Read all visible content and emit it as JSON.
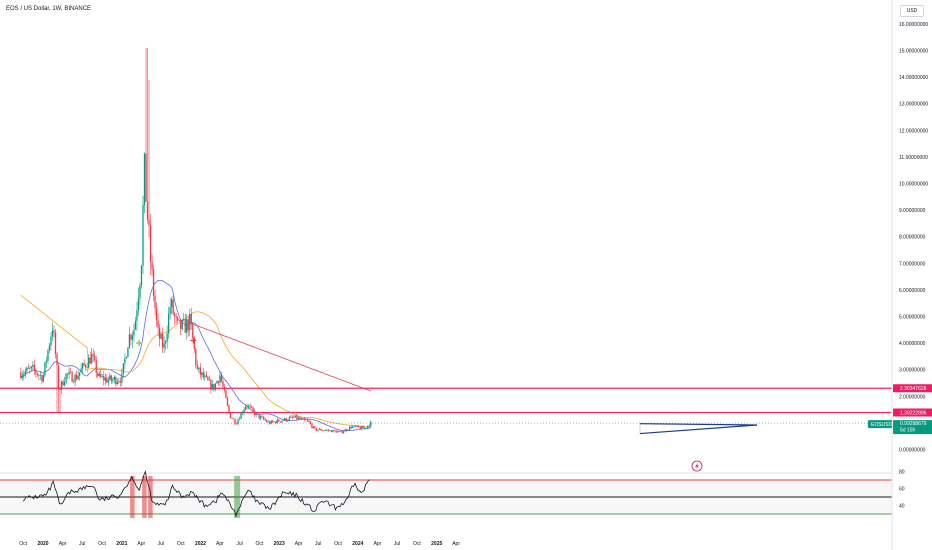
{
  "header": {
    "title": "EOS / US Dollar, 1W, BINANCE",
    "currency": "USD"
  },
  "price_axis": {
    "ticks": [
      "16.00000000",
      "15.00000000",
      "14.00000000",
      "13.00000000",
      "12.00000000",
      "11.00000000",
      "10.00000000",
      "9.00000000",
      "8.00000000",
      "7.00000000",
      "6.00000000",
      "5.00000000",
      "4.00000000",
      "3.00000000",
      "2.00000000",
      "1.00000000",
      "0.00000000"
    ],
    "tags": {
      "upper_level": "2.30347628",
      "lower_level": "1.39222896",
      "symbol": "EOSUSD",
      "last_price": "0.99298679",
      "countdown": "5d 15h"
    }
  },
  "rsi_axis": {
    "ticks": [
      "80",
      "60",
      "40"
    ]
  },
  "time_axis": {
    "labels": [
      "Oct",
      "2020",
      "Apr",
      "Jul",
      "Oct",
      "2021",
      "Apr",
      "Jul",
      "Oct",
      "2022",
      "Apr",
      "Jul",
      "Oct",
      "2023",
      "Apr",
      "Jul",
      "Oct",
      "2024",
      "Apr",
      "Jul",
      "Oct",
      "2025",
      "Apr"
    ]
  },
  "colors": {
    "up": "#089981",
    "down": "#f23645",
    "ma_blue": "#5b6ee1",
    "ma_orange": "#f5a623",
    "ma_red": "#e0404e",
    "level_line": "#f2285a",
    "trendline": "#1e3a8a",
    "rsi_band_top": "#e53935",
    "rsi_band_bottom": "#43a047",
    "tag_pink": "#e91e63",
    "tag_green": "#089981"
  },
  "chart_data": {
    "type": "candlestick",
    "symbol": "EOSUSD",
    "interval": "1W",
    "y_range": [
      0,
      16
    ],
    "close_points": [
      {
        "date": "2019-10-01",
        "close": 2.9
      },
      {
        "date": "2019-11-15",
        "close": 3.0
      },
      {
        "date": "2020-01-01",
        "close": 2.7
      },
      {
        "date": "2020-02-15",
        "close": 4.7
      },
      {
        "date": "2020-03-15",
        "close": 2.2
      },
      {
        "date": "2020-04-15",
        "close": 2.8
      },
      {
        "date": "2020-06-01",
        "close": 2.7
      },
      {
        "date": "2020-07-15",
        "close": 3.2
      },
      {
        "date": "2020-08-15",
        "close": 3.5
      },
      {
        "date": "2020-09-15",
        "close": 2.7
      },
      {
        "date": "2020-11-15",
        "close": 2.6
      },
      {
        "date": "2021-01-01",
        "close": 2.7
      },
      {
        "date": "2021-02-01",
        "close": 4.2
      },
      {
        "date": "2021-03-01",
        "close": 4.6
      },
      {
        "date": "2021-04-01",
        "close": 7.0
      },
      {
        "date": "2021-04-15",
        "close": 10.5
      },
      {
        "date": "2021-05-15",
        "close": 7.0
      },
      {
        "date": "2021-06-15",
        "close": 4.4
      },
      {
        "date": "2021-07-15",
        "close": 3.8
      },
      {
        "date": "2021-08-15",
        "close": 5.5
      },
      {
        "date": "2021-09-15",
        "close": 4.6
      },
      {
        "date": "2021-10-15",
        "close": 4.6
      },
      {
        "date": "2021-11-15",
        "close": 4.8
      },
      {
        "date": "2021-12-15",
        "close": 3.0
      },
      {
        "date": "2022-01-15",
        "close": 2.7
      },
      {
        "date": "2022-03-01",
        "close": 2.3
      },
      {
        "date": "2022-04-01",
        "close": 2.8
      },
      {
        "date": "2022-05-15",
        "close": 1.3
      },
      {
        "date": "2022-06-15",
        "close": 1.0
      },
      {
        "date": "2022-08-01",
        "close": 1.7
      },
      {
        "date": "2022-09-15",
        "close": 1.3
      },
      {
        "date": "2022-11-15",
        "close": 1.0
      },
      {
        "date": "2023-01-15",
        "close": 1.1
      },
      {
        "date": "2023-03-15",
        "close": 1.2
      },
      {
        "date": "2023-05-15",
        "close": 1.05
      },
      {
        "date": "2023-06-15",
        "close": 0.75
      },
      {
        "date": "2023-08-15",
        "close": 0.72
      },
      {
        "date": "2023-10-15",
        "close": 0.65
      },
      {
        "date": "2023-12-01",
        "close": 0.85
      },
      {
        "date": "2024-02-01",
        "close": 0.8
      },
      {
        "date": "2024-03-01",
        "close": 0.99
      }
    ],
    "horizontal_levels": [
      2.30347628,
      1.39222896
    ],
    "last_price": 0.99298679,
    "rsi_levels": [
      70,
      50,
      30
    ],
    "rsi_range": [
      20,
      80
    ]
  }
}
